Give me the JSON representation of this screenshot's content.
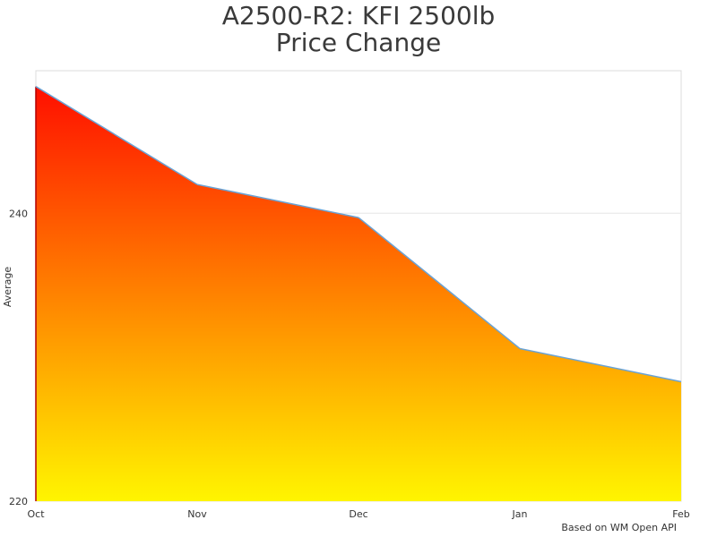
{
  "chart_data": {
    "type": "area",
    "title_lines": [
      "A2500-R2: KFI 2500lb",
      "Price Change"
    ],
    "categories": [
      "Oct",
      "Nov",
      "Dec",
      "Jan",
      "Feb"
    ],
    "series": [
      {
        "values": [
          248.8,
          242.0,
          239.7,
          230.6,
          228.3
        ]
      }
    ],
    "ylabel": "Average",
    "xlabel": "",
    "ylim": [
      220,
      249.9
    ],
    "yticks": [
      220,
      240
    ],
    "grid": true,
    "legend": "none",
    "fill_gradient_top": "#ff0f00",
    "fill_gradient_bottom": "#fff500",
    "line_color": "#6aa3d5",
    "gridline_color": "#e6e6e6",
    "credits": "Based on WM Open API"
  }
}
